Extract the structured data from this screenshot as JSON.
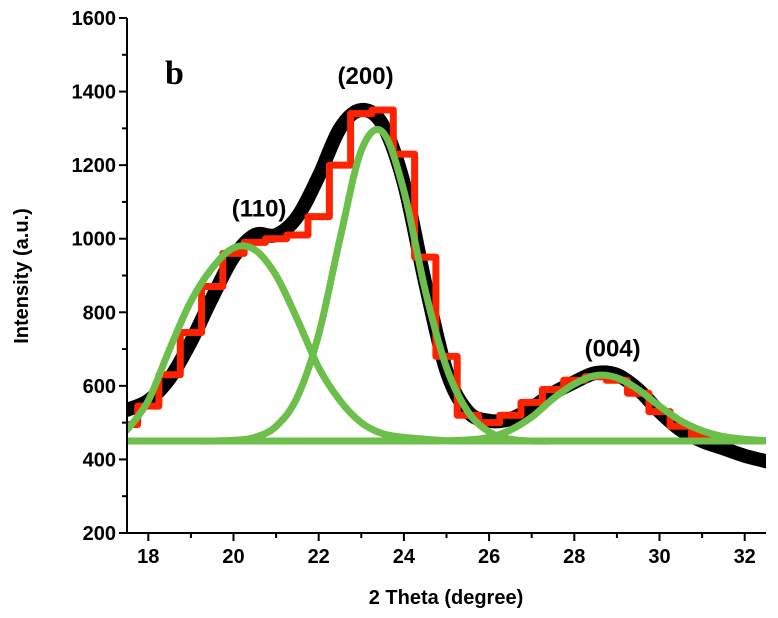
{
  "chart_data": {
    "type": "line",
    "panel_label": "b",
    "xlabel": "2 Theta (degree)",
    "ylabel": "Intensity (a.u.)",
    "xlim": [
      17.5,
      32.5
    ],
    "ylim": [
      200,
      1600
    ],
    "x_ticks": [
      18,
      20,
      22,
      24,
      26,
      28,
      30,
      32
    ],
    "y_ticks": [
      200,
      400,
      600,
      800,
      1000,
      1200,
      1400,
      1600
    ],
    "grid": false,
    "annotations": [
      {
        "text": "(110)",
        "x": 20.6,
        "y": 1060
      },
      {
        "text": "(200)",
        "x": 23.1,
        "y": 1420
      },
      {
        "text": "(004)",
        "x": 28.9,
        "y": 680
      }
    ],
    "baseline": 450,
    "peaks": [
      {
        "name": "(110)",
        "center": 20.6,
        "height": 530,
        "fwhm": 2.4
      },
      {
        "name": "(200)",
        "center": 23.25,
        "height": 850,
        "fwhm": 2.15
      },
      {
        "name": "(004)",
        "center": 28.7,
        "height": 180,
        "fwhm": 2.8
      }
    ],
    "series": [
      {
        "color": "#000000",
        "x": [
          17.5,
          18.0,
          18.5,
          19.0,
          19.5,
          20.0,
          20.5,
          21.0,
          21.5,
          22.0,
          22.5,
          23.0,
          23.5,
          24.0,
          24.5,
          25.0,
          25.5,
          26.0,
          26.5,
          27.0,
          27.5,
          28.0,
          28.5,
          29.0,
          29.5,
          30.0,
          30.5,
          31.0,
          31.5,
          32.0,
          32.5
        ],
        "values": [
          535,
          560,
          620,
          720,
          840,
          950,
          1010,
          1010,
          1060,
          1170,
          1300,
          1350,
          1310,
          1150,
          880,
          640,
          530,
          505,
          510,
          540,
          580,
          610,
          635,
          630,
          590,
          530,
          480,
          450,
          430,
          410,
          395
        ]
      },
      {
        "color": "#ff2200",
        "x": [
          17.5,
          18.0,
          18.5,
          19.0,
          19.5,
          20.0,
          20.5,
          21.0,
          21.5,
          22.0,
          22.5,
          23.0,
          23.5,
          24.0,
          24.5,
          25.0,
          25.5,
          26.0,
          26.5,
          27.0,
          27.5,
          28.0,
          28.5,
          29.0,
          29.5,
          30.0,
          30.5,
          31.0,
          31.5,
          32.0,
          32.5
        ],
        "values": [
          495,
          545,
          630,
          745,
          870,
          960,
          990,
          1000,
          1010,
          1060,
          1200,
          1340,
          1350,
          1230,
          950,
          680,
          520,
          500,
          520,
          555,
          590,
          615,
          625,
          615,
          580,
          530,
          490,
          465,
          455,
          450,
          450
        ]
      },
      {
        "color": "#6dbf4b",
        "x": [
          17.5,
          18.0,
          18.5,
          19.0,
          19.5,
          20.0,
          20.5,
          21.0,
          21.5,
          22.0,
          22.5,
          23.0,
          23.5,
          24.0,
          24.5,
          25.0,
          25.5,
          26.0,
          26.5,
          27.0,
          27.5,
          28.0,
          28.5,
          29.0,
          29.5,
          30.0,
          30.5,
          31.0,
          31.5,
          32.0,
          32.5
        ],
        "values": [
          480,
          560,
          700,
          830,
          920,
          975,
          970,
          900,
          780,
          650,
          560,
          500,
          470,
          460,
          455,
          451,
          450,
          450,
          450,
          450,
          450,
          450,
          450,
          450,
          450,
          450,
          450,
          450,
          450,
          450,
          450
        ]
      },
      {
        "color": "#6dbf4b",
        "x": [
          17.5,
          18.0,
          18.5,
          19.0,
          19.5,
          20.0,
          20.5,
          21.0,
          21.5,
          22.0,
          22.5,
          23.0,
          23.5,
          24.0,
          24.5,
          25.0,
          25.5,
          26.0,
          26.5,
          27.0,
          27.5,
          28.0,
          28.5,
          29.0,
          29.5,
          30.0,
          30.5,
          31.0,
          31.5,
          32.0,
          32.5
        ],
        "values": [
          450,
          450,
          450,
          450,
          450,
          452,
          460,
          490,
          570,
          740,
          1000,
          1240,
          1290,
          1130,
          860,
          650,
          530,
          475,
          455,
          450,
          450,
          450,
          450,
          450,
          450,
          450,
          450,
          450,
          450,
          450,
          450
        ]
      },
      {
        "color": "#6dbf4b",
        "x": [
          17.5,
          18.0,
          18.5,
          19.0,
          19.5,
          20.0,
          20.5,
          21.0,
          21.5,
          22.0,
          22.5,
          23.0,
          23.5,
          24.0,
          24.5,
          25.0,
          25.5,
          26.0,
          26.5,
          27.0,
          27.5,
          28.0,
          28.5,
          29.0,
          29.5,
          30.0,
          30.5,
          31.0,
          31.5,
          32.0,
          32.5
        ],
        "values": [
          450,
          450,
          450,
          450,
          450,
          450,
          450,
          450,
          450,
          450,
          450,
          450,
          450,
          450,
          450,
          451,
          453,
          460,
          480,
          515,
          565,
          605,
          628,
          622,
          590,
          545,
          505,
          478,
          462,
          455,
          451
        ]
      }
    ]
  }
}
